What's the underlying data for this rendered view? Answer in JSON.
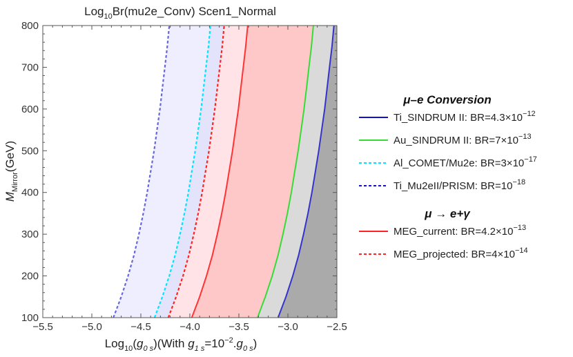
{
  "chart_data": {
    "type": "area",
    "title": {
      "prefix": "Log",
      "sub": "10",
      "rest": "Br(mu2e_Conv) Scen1_Normal"
    },
    "xlabel": {
      "pre": "Log",
      "sub1": "10",
      "mid1": "(",
      "it1": "g",
      "sub2": "0 s",
      "mid2": ")(With ",
      "it2": "g",
      "sub3": "1 s",
      "mid3": "=10",
      "sup1": "−2",
      "mid4": ".",
      "it3": "g",
      "sub4": "0 s",
      "post": ")"
    },
    "ylabel": {
      "it": "M",
      "sub": "Mirror",
      "post": "(GeV)"
    },
    "xlim": [
      -5.5,
      -2.5
    ],
    "ylim": [
      100,
      800
    ],
    "xticks": [
      -5.5,
      -5.0,
      -4.5,
      -4.0,
      -3.5,
      -3.0,
      -2.5
    ],
    "xtick_labels": [
      "−5.5",
      "−5.0",
      "−4.5",
      "−4.0",
      "−3.5",
      "−3.0",
      "−2.5"
    ],
    "yticks": [
      100,
      200,
      300,
      400,
      500,
      600,
      700,
      800
    ],
    "ytick_labels": [
      "100",
      "200",
      "300",
      "400",
      "500",
      "600",
      "700",
      "800"
    ],
    "y_samples": [
      100,
      150,
      200,
      250,
      300,
      350,
      400,
      450,
      500,
      550,
      600,
      650,
      700,
      750,
      800
    ],
    "series": [
      {
        "name": "Ti_Mu2eII/PRISM: BR=10",
        "sup": "−18",
        "color": "#6666dd",
        "dash": true,
        "fill": "#eeeeff",
        "x": [
          -4.78,
          -4.7,
          -4.63,
          -4.57,
          -4.52,
          -4.475,
          -4.435,
          -4.4,
          -4.365,
          -4.335,
          -4.305,
          -4.28,
          -4.255,
          -4.23,
          -4.21
        ]
      },
      {
        "name": "Al_COMET/Mu2e: BR=3×10",
        "sup": "−17",
        "color": "#00e5ff",
        "dash": true,
        "fill": "#e3e3fb",
        "x": [
          -4.36,
          -4.28,
          -4.21,
          -4.15,
          -4.1,
          -4.055,
          -4.015,
          -3.98,
          -3.945,
          -3.915,
          -3.885,
          -3.86,
          -3.835,
          -3.81,
          -3.79
        ]
      },
      {
        "name": "MEG_projected: BR=4×10",
        "sup": "−14",
        "color": "#ff2222",
        "dash": true,
        "fill": "#ffe3e6",
        "x": [
          -4.22,
          -4.14,
          -4.07,
          -4.01,
          -3.96,
          -3.915,
          -3.875,
          -3.84,
          -3.805,
          -3.775,
          -3.745,
          -3.72,
          -3.695,
          -3.67,
          -3.65
        ]
      },
      {
        "name": "MEG_current: BR=4.2×10",
        "sup": "−13",
        "color": "#ff3333",
        "dash": false,
        "fill": "#ffc8c8",
        "x": [
          -3.98,
          -3.9,
          -3.83,
          -3.77,
          -3.72,
          -3.675,
          -3.635,
          -3.6,
          -3.565,
          -3.535,
          -3.505,
          -3.48,
          -3.455,
          -3.43,
          -3.41
        ]
      },
      {
        "name": "Au_SINDRUM II: BR=7×10",
        "sup": "−13",
        "color": "#33dd33",
        "dash": false,
        "fill": "#dadada",
        "x": [
          -3.31,
          -3.23,
          -3.16,
          -3.1,
          -3.05,
          -3.005,
          -2.965,
          -2.93,
          -2.895,
          -2.865,
          -2.835,
          -2.81,
          -2.785,
          -2.76,
          -2.74
        ]
      },
      {
        "name": "Ti_SINDRUM II: BR=4.3×10",
        "sup": "−12",
        "color": "#3333cc",
        "dash": false,
        "fill": "#aaaaaa",
        "x": [
          -3.1,
          -3.02,
          -2.95,
          -2.89,
          -2.84,
          -2.795,
          -2.755,
          -2.72,
          -2.685,
          -2.655,
          -2.625,
          -2.6,
          -2.575,
          -2.55,
          -2.53
        ]
      }
    ],
    "legend": {
      "placement": "right",
      "groups": [
        {
          "title": "μ–e Conversion",
          "entries": [
            {
              "label": "Ti_SINDRUM II: BR=4.3×10",
              "sup": "−12",
              "color": "#1111cc",
              "dash": false
            },
            {
              "label": "Au_SINDRUM II: BR=7×10",
              "sup": "−13",
              "color": "#33dd33",
              "dash": false
            },
            {
              "label": "Al_COMET/Mu2e: BR=3×10",
              "sup": "−17",
              "color": "#00e5ff",
              "dash": true
            },
            {
              "label": "Ti_Mu2eII/PRISM: BR=10",
              "sup": "−18",
              "color": "#1111cc",
              "dash": true
            }
          ]
        },
        {
          "title": "μ → e+γ",
          "entries": [
            {
              "label": "MEG_current: BR=4.2×10",
              "sup": "−13",
              "color": "#ff2222",
              "dash": false
            },
            {
              "label": "MEG_projected: BR=4×10",
              "sup": "−14",
              "color": "#ff2222",
              "dash": true
            }
          ]
        }
      ]
    }
  }
}
